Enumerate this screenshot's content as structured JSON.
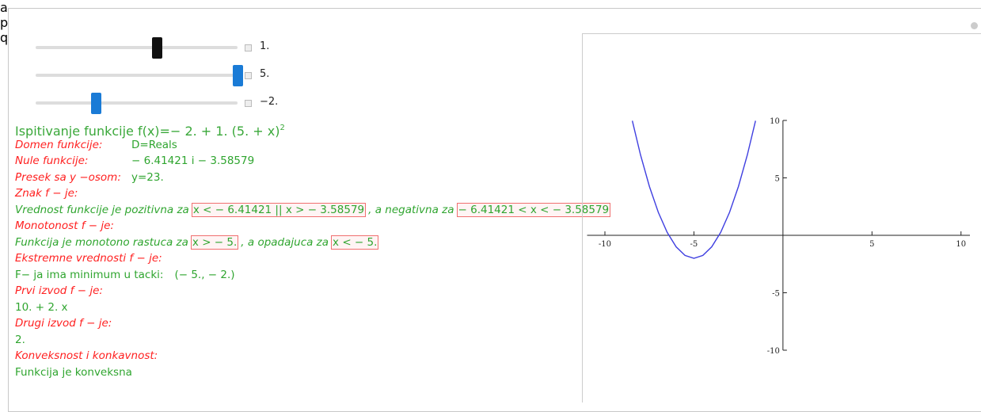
{
  "slider_range": [
    -5,
    5
  ],
  "sliders": [
    {
      "name": "a",
      "value": 1,
      "value_label": "1.",
      "color": "#111111"
    },
    {
      "name": "p",
      "value": 5,
      "value_label": "5.",
      "color": "#1a7bd6"
    },
    {
      "name": "q",
      "value": -2,
      "value_label": "−2.",
      "color": "#1a7bd6"
    }
  ],
  "rows": [
    {
      "segments": [
        {
          "text": "Ispitivanje funkcije f(x)=− 2. + 1. (5. + x)",
          "style": "title"
        },
        {
          "text": "2",
          "style": "sup"
        }
      ]
    },
    {
      "segments": [
        {
          "text": "Domen funkcije:",
          "style": "label"
        },
        {
          "text": "D=Reals",
          "style": "col-value"
        }
      ]
    },
    {
      "segments": [
        {
          "text": "Nule funkcije:",
          "style": "label"
        },
        {
          "text": "− 6.41421 i − 3.58579",
          "style": "col-value"
        }
      ]
    },
    {
      "segments": [
        {
          "text": "Presek sa y −osom:",
          "style": "label"
        },
        {
          "text": "y=23.",
          "style": "col-value"
        }
      ]
    },
    {
      "segments": [
        {
          "text": "Znak f − je:",
          "style": "label"
        }
      ]
    },
    {
      "segments": [
        {
          "text": "Vrednost funkcije je pozitivna za",
          "style": "value-italic"
        },
        {
          "text": "x < − 6.41421 || x > − 3.58579",
          "style": "box"
        },
        {
          "text": ", a negativna za",
          "style": "value-italic"
        },
        {
          "text": "− 6.41421 < x < − 3.58579",
          "style": "box"
        }
      ]
    },
    {
      "segments": [
        {
          "text": "Monotonost f − je:",
          "style": "label"
        }
      ]
    },
    {
      "segments": [
        {
          "text": "Funkcija je monotono rastuca za",
          "style": "value-italic"
        },
        {
          "text": "x > − 5.",
          "style": "box"
        },
        {
          "text": ", a opadajuca za",
          "style": "value-italic"
        },
        {
          "text": "x < − 5.",
          "style": "box"
        }
      ]
    },
    {
      "segments": [
        {
          "text": "Ekstremne vrednosti f − je:",
          "style": "label"
        }
      ]
    },
    {
      "segments": [
        {
          "text": "F− ja ima minimum u tacki:",
          "style": "value"
        },
        {
          "text": "(− 5., − 2.)",
          "style": "gap-value"
        }
      ]
    },
    {
      "segments": [
        {
          "text": "Prvi izvod f − je:",
          "style": "label"
        }
      ]
    },
    {
      "segments": [
        {
          "text": "10. + 2. x",
          "style": "value"
        }
      ]
    },
    {
      "segments": [
        {
          "text": "Drugi izvod f − je:",
          "style": "label"
        }
      ]
    },
    {
      "segments": [
        {
          "text": "2.",
          "style": "value"
        }
      ]
    },
    {
      "segments": [
        {
          "text": "Konveksnost i konkavnost:",
          "style": "label"
        }
      ]
    },
    {
      "segments": [
        {
          "text": "Funkcija je konveksna",
          "style": "value"
        }
      ]
    }
  ],
  "chart_data": {
    "type": "line",
    "x": [
      -8.46,
      -8,
      -7.5,
      -7,
      -6.5,
      -6,
      -5.5,
      -5,
      -4.5,
      -4,
      -3.5,
      -3,
      -2.5,
      -2,
      -1.54
    ],
    "values": [
      9.97,
      7,
      4.25,
      2,
      0.25,
      -1,
      -1.75,
      -2,
      -1.75,
      -1,
      0.25,
      2,
      4.25,
      7,
      9.97
    ],
    "color": "#3f3fe0",
    "xlim": [
      -11,
      10.5
    ],
    "ylim": [
      -10,
      10
    ],
    "xticks": [
      -10,
      -5,
      5,
      10
    ],
    "yticks": [
      -10,
      -5,
      5,
      10
    ]
  }
}
